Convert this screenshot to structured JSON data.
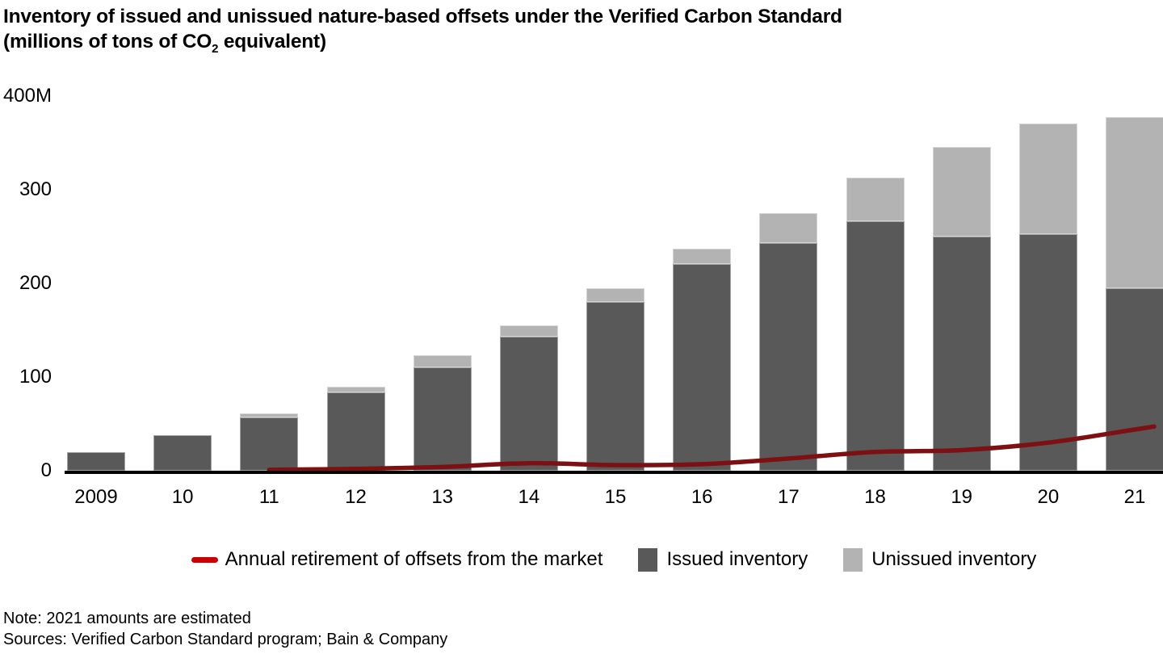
{
  "title": {
    "line1": "Inventory of issued and unissued nature-based offsets under the Verified Carbon Standard",
    "line2_pre": "(millions of tons of CO",
    "line2_sub": "2",
    "line2_post": " equivalent)"
  },
  "chart_data": {
    "type": "bar",
    "subtype": "stacked bars with overlay line",
    "title": "Inventory of issued and unissued nature-based offsets under the Verified Carbon Standard (millions of tons of CO2 equivalent)",
    "categories": [
      "2009",
      "10",
      "11",
      "12",
      "13",
      "14",
      "15",
      "16",
      "17",
      "18",
      "19",
      "20",
      "21"
    ],
    "series": [
      {
        "name": "Issued inventory",
        "type": "bar",
        "color": "#595959",
        "values": [
          20,
          38,
          57,
          84,
          110,
          143,
          180,
          221,
          243,
          266,
          250,
          253,
          195
        ]
      },
      {
        "name": "Unissued inventory",
        "type": "bar",
        "color": "#b3b3b3",
        "values": [
          0,
          0,
          4,
          6,
          13,
          12,
          15,
          16,
          32,
          47,
          96,
          118,
          183
        ]
      },
      {
        "name": "Annual retirement of offsets from the market",
        "type": "line",
        "color": "#7c1013",
        "values": [
          null,
          null,
          1,
          2,
          4,
          8,
          6,
          7,
          13,
          20,
          22,
          30,
          44
        ]
      }
    ],
    "y_axis": {
      "min": 0,
      "max": 400,
      "tick_values": [
        0,
        100,
        200,
        300,
        400
      ],
      "tick_labels": [
        "0",
        "100",
        "200",
        "300",
        "400M"
      ]
    },
    "grid": false,
    "legend_position": "bottom"
  },
  "colors": {
    "issued_bar": "#595959",
    "unissued_bar": "#b3b3b3",
    "retirement_line": "#7c1013",
    "retirement_legend_swatch": "#cc0000",
    "axis": "#000000"
  },
  "footer": {
    "note": "Note: 2021 amounts are estimated",
    "sources": "Sources: Verified Carbon Standard program; Bain & Company"
  }
}
